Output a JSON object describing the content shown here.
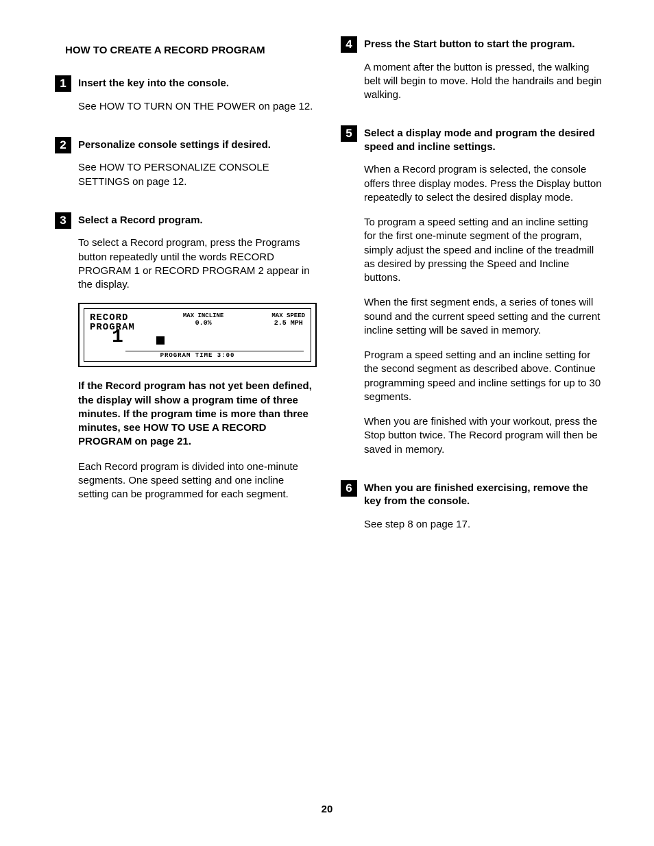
{
  "section_title": "HOW TO CREATE A RECORD PROGRAM",
  "page_number": "20",
  "left_steps": [
    {
      "num": "1",
      "title": "Insert the key into the console.",
      "paras": [
        {
          "type": "text",
          "t": "See HOW TO TURN ON THE POWER on page 12."
        }
      ]
    },
    {
      "num": "2",
      "title": "Personalize console settings if desired.",
      "paras": [
        {
          "type": "text",
          "t": "See HOW TO PERSONALIZE CONSOLE SETTINGS on page 12."
        }
      ]
    },
    {
      "num": "3",
      "title": "Select a Record program.",
      "paras": [
        {
          "type": "text",
          "t": "To select a Record program, press the Programs button repeatedly until the words RECORD PROGRAM 1 or RECORD PROGRAM 2 appear in the display."
        },
        {
          "type": "display"
        },
        {
          "type": "bold",
          "t": "If the Record program has not yet been defined, the display will show a program time of three minutes. If the program time is more than three minutes, see HOW TO USE A RECORD PROGRAM on page 21."
        },
        {
          "type": "text",
          "t": "Each Record program is divided into one-minute segments. One speed setting and one incline setting can be programmed for each segment."
        }
      ]
    }
  ],
  "right_steps": [
    {
      "num": "4",
      "title": "Press the Start button to start the program.",
      "paras": [
        {
          "type": "text",
          "t": "A moment after the button is pressed, the walking belt will begin to move. Hold the handrails and begin walking."
        }
      ]
    },
    {
      "num": "5",
      "title": "Select a display mode and program the desired speed and incline settings.",
      "paras": [
        {
          "type": "text",
          "t": "When a Record program is selected, the console offers three display modes. Press the Display button repeatedly to select the desired display mode."
        },
        {
          "type": "text",
          "t": "To program a speed setting and an incline setting for the first one-minute segment of the program, simply adjust the speed and incline of the treadmill as desired by pressing the Speed and Incline buttons."
        },
        {
          "type": "text",
          "t": "When the first segment ends, a series of tones will sound and the current speed setting and the current incline setting will be saved in memory."
        },
        {
          "type": "text",
          "t": "Program a speed setting and an incline setting for the second segment as described above. Continue programming speed and incline settings for up to 30 segments."
        },
        {
          "type": "text",
          "t": "When you are finished with your workout, press the Stop button twice. The Record program will then be saved in memory."
        }
      ]
    },
    {
      "num": "6",
      "title": "When you are finished exercising, remove the key from the console.",
      "paras": [
        {
          "type": "text",
          "t": "See step 8 on page 17."
        }
      ]
    }
  ],
  "display": {
    "label_line1": "RECORD",
    "label_line2": "PROGRAM",
    "mid_label": "MAX INCLINE",
    "mid_value": "0.0%",
    "right_label": "MAX SPEED",
    "right_value": "2.5 MPH",
    "big_number": "1",
    "bottom_text": "PROGRAM TIME  3:00"
  }
}
